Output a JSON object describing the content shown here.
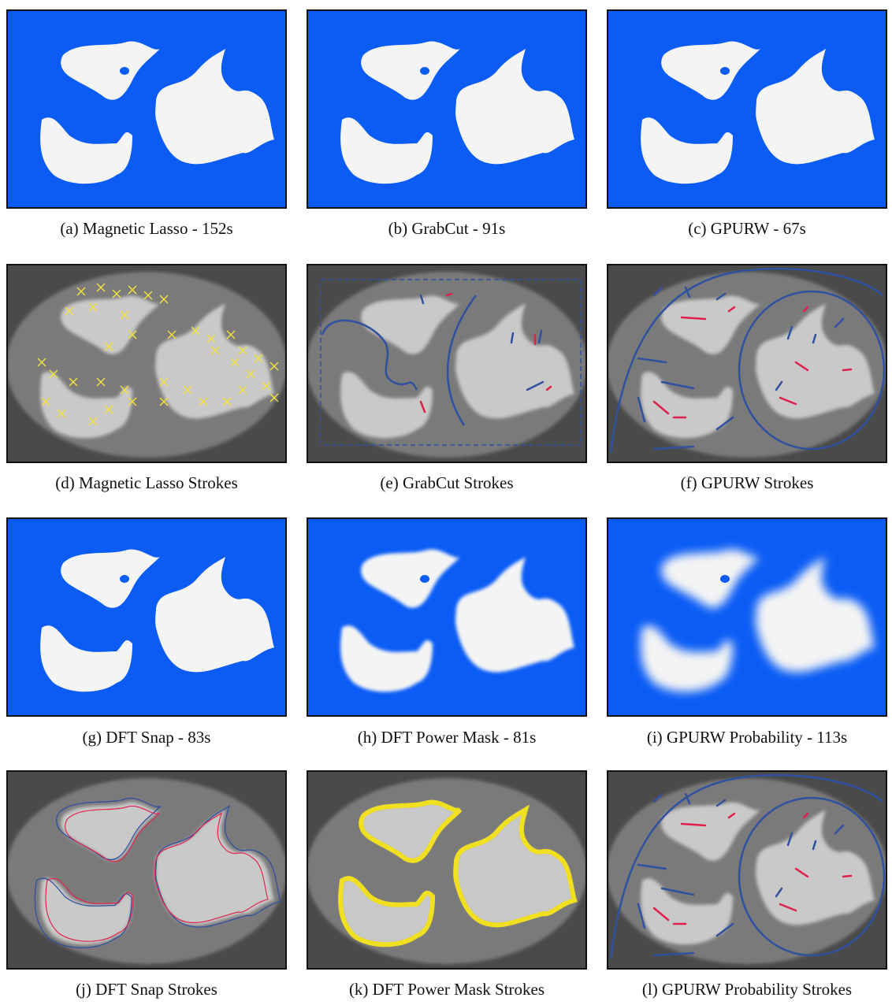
{
  "panels": [
    {
      "caption": "(a) Magnetic Lasso - 152s"
    },
    {
      "caption": "(b) GrabCut - 91s"
    },
    {
      "caption": "(c) GPURW - 67s"
    },
    {
      "caption": "(d) Magnetic Lasso Strokes"
    },
    {
      "caption": "(e) GrabCut Strokes"
    },
    {
      "caption": "(f) GPURW Strokes"
    },
    {
      "caption": "(g) DFT Snap - 83s"
    },
    {
      "caption": "(h) DFT Power Mask - 81s"
    },
    {
      "caption": "(i) GPURW Probability - 113s"
    },
    {
      "caption": "(j) DFT Snap Strokes"
    },
    {
      "caption": "(k) DFT Power Mask Strokes"
    },
    {
      "caption": "(l) GPURW Probability Strokes"
    }
  ]
}
